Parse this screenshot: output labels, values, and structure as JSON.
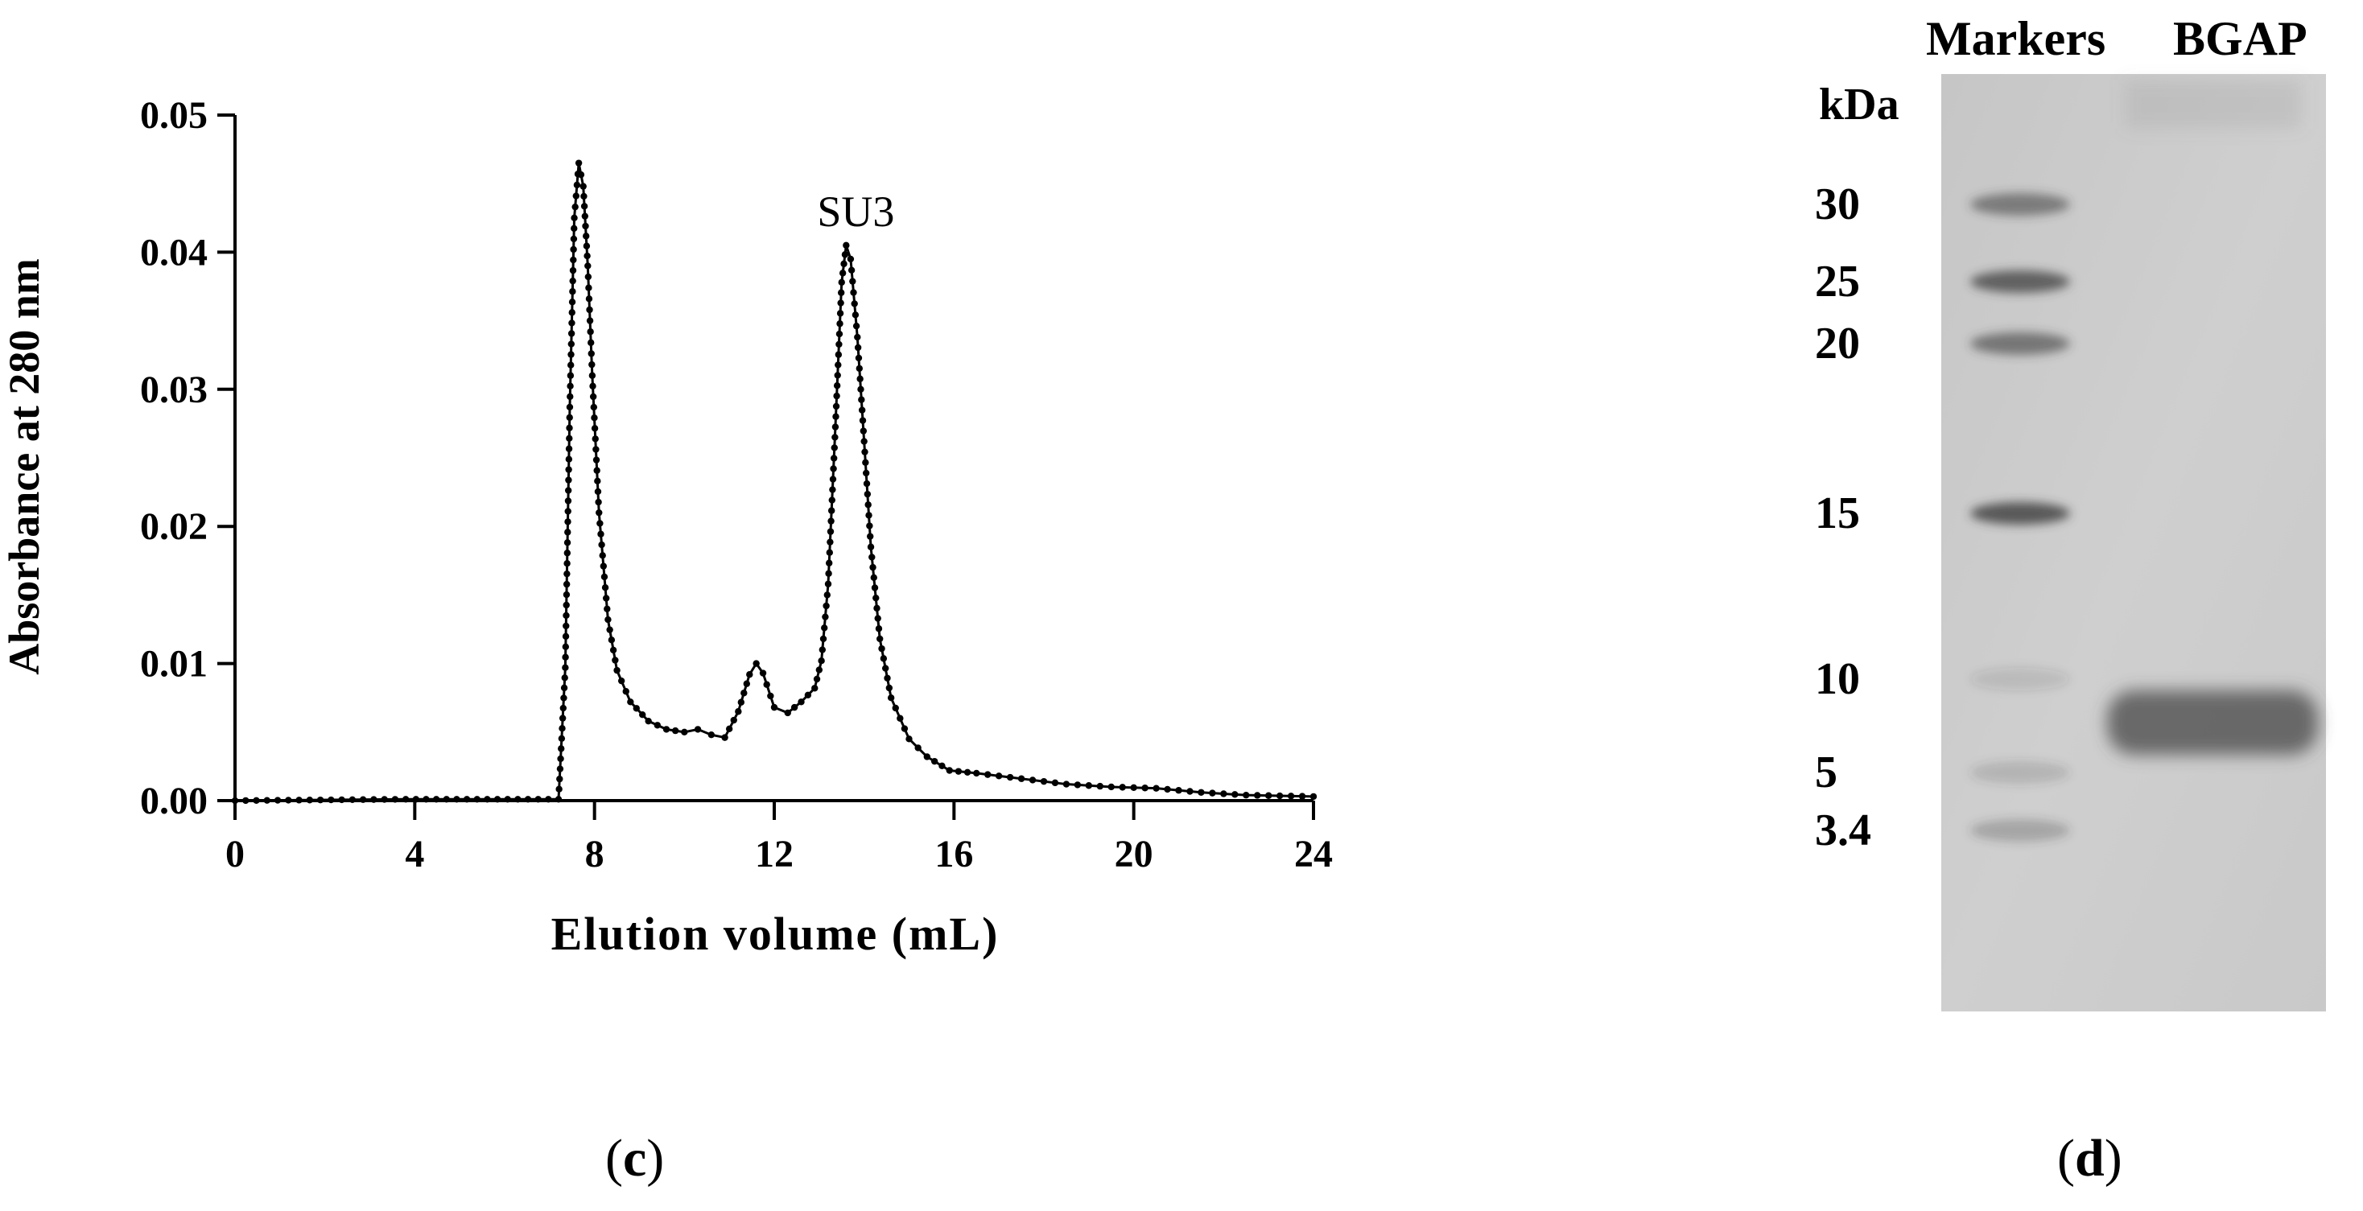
{
  "panel_c": {
    "label_open": "(",
    "label_letter": "c",
    "label_close": ")"
  },
  "panel_d": {
    "label_open": "(",
    "label_letter": "d",
    "label_close": ")"
  },
  "chart_data": [
    {
      "type": "line",
      "title": "",
      "xlabel": "Elution volume (mL)",
      "ylabel": "Absorbance at 280 nm",
      "xlim": [
        0,
        24
      ],
      "ylim": [
        0,
        0.05
      ],
      "xticks": [
        0,
        4,
        8,
        12,
        16,
        20,
        24
      ],
      "xtick_labels": [
        "0",
        "4",
        "8",
        "12",
        "16",
        "20",
        "24"
      ],
      "yticks": [
        0,
        0.01,
        0.02,
        0.03,
        0.04,
        0.05
      ],
      "ytick_labels": [
        "0.00",
        "0.01",
        "0.02",
        "0.03",
        "0.04",
        "0.05"
      ],
      "grid": false,
      "marker": "dot",
      "line_color": "#000000",
      "annotations": [
        {
          "text": "SU3",
          "x": 13.6,
          "y": 0.0405
        }
      ],
      "series": [
        {
          "x": [
            0,
            3.8,
            7.2,
            7.35,
            7.45,
            7.55,
            7.65,
            7.75,
            7.85,
            7.95,
            8.1,
            8.3,
            8.5,
            8.8,
            9.2,
            9.6,
            10.0,
            10.3,
            10.6,
            10.9,
            11.2,
            11.45,
            11.6,
            11.75,
            12.0,
            12.3,
            12.6,
            12.9,
            13.05,
            13.2,
            13.35,
            13.5,
            13.6,
            13.7,
            13.85,
            14.0,
            14.15,
            14.35,
            14.6,
            15.0,
            15.4,
            15.9,
            16.5,
            17.5,
            18.5,
            19.5,
            20.5,
            21.5,
            22.5,
            24.0
          ],
          "y": [
            0,
            0.0001,
            0.0001,
            0.0097,
            0.0287,
            0.0425,
            0.0465,
            0.0448,
            0.039,
            0.031,
            0.021,
            0.0132,
            0.0095,
            0.0072,
            0.0058,
            0.0052,
            0.005,
            0.0052,
            0.0048,
            0.0046,
            0.0065,
            0.0092,
            0.01,
            0.0093,
            0.0068,
            0.0064,
            0.0072,
            0.0082,
            0.0102,
            0.0158,
            0.0265,
            0.0378,
            0.0405,
            0.0395,
            0.0338,
            0.0262,
            0.0185,
            0.0118,
            0.0075,
            0.0045,
            0.0032,
            0.0022,
            0.002,
            0.0016,
            0.0012,
            0.001,
            0.0009,
            0.0006,
            0.0004,
            0.0003
          ]
        }
      ]
    },
    {
      "type": "gel",
      "title": "",
      "column_headers": [
        "Markers",
        "BGAP"
      ],
      "unit_label": "kDa",
      "marker_labels": [
        "30",
        "25",
        "20",
        "15",
        "10",
        "5",
        "3.4"
      ],
      "marker_bands_kDa": [
        30,
        25,
        20,
        15,
        10,
        5,
        3.4
      ],
      "sample_bands": [
        {
          "lane": "BGAP",
          "approx_kDa": 7
        }
      ]
    }
  ]
}
